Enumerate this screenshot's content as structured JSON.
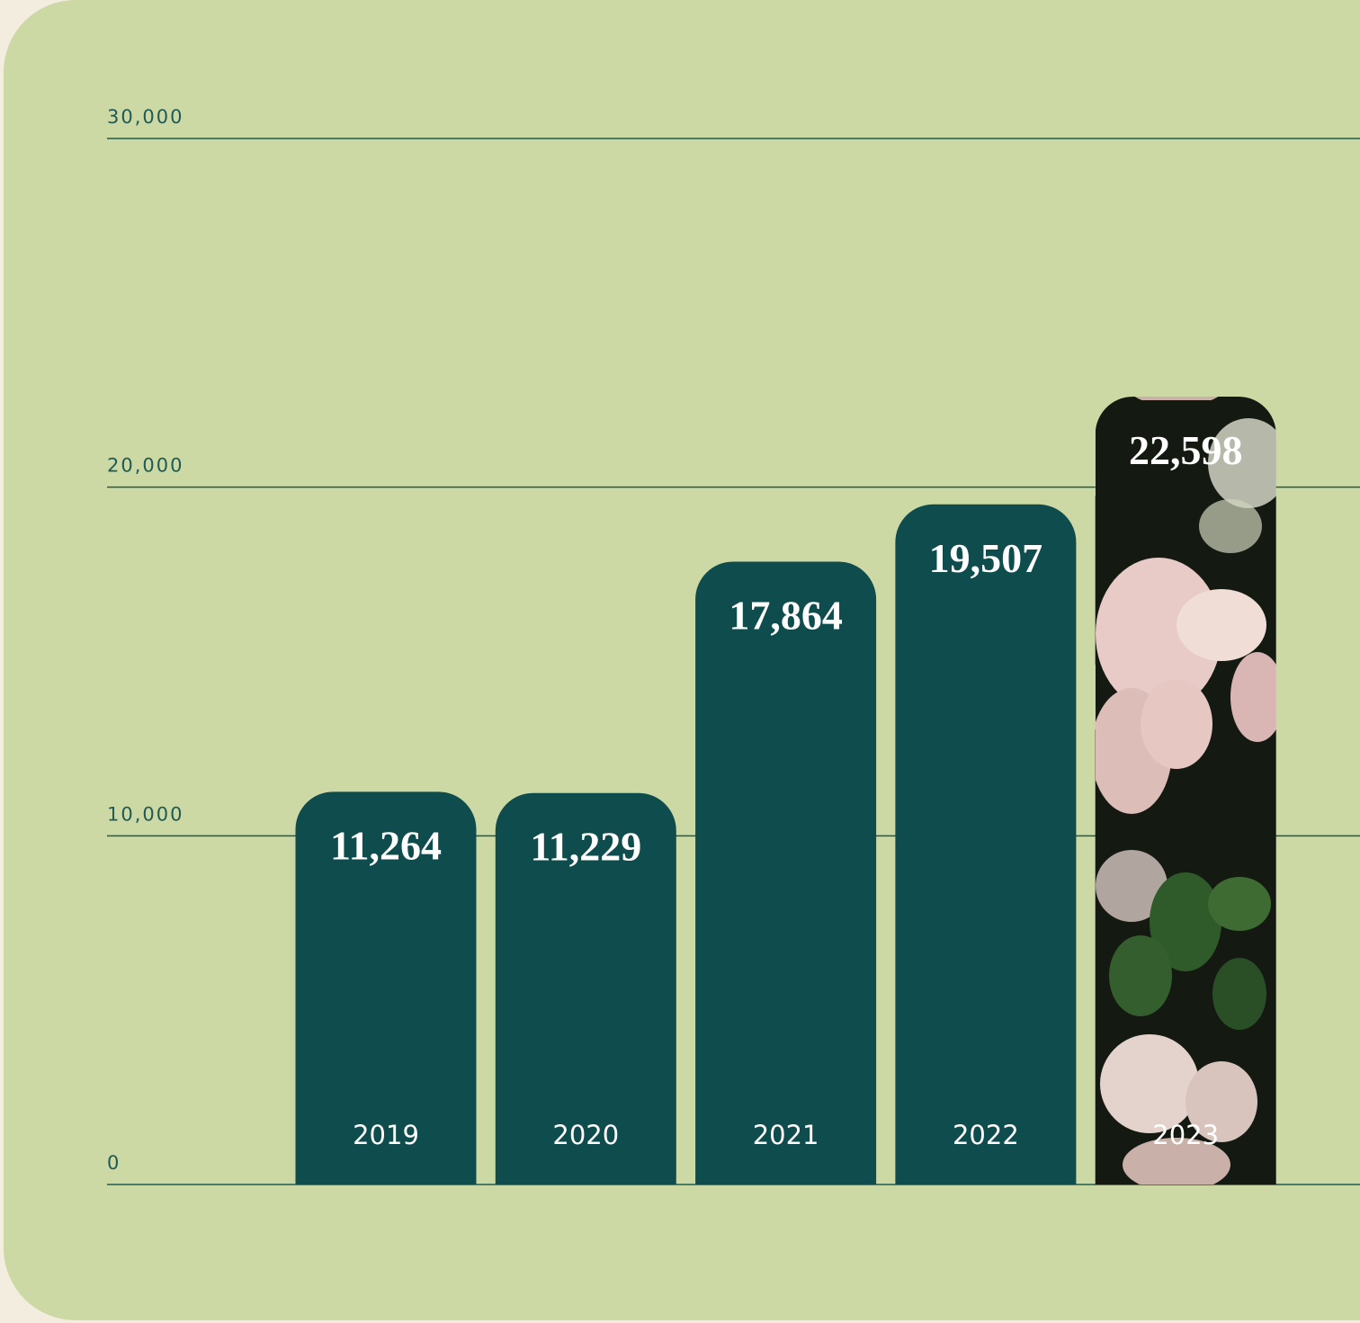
{
  "chart_data": {
    "type": "bar",
    "categories": [
      "2019",
      "2020",
      "2021",
      "2022",
      "2023"
    ],
    "values": [
      11264,
      11229,
      17864,
      19507,
      22598
    ],
    "value_labels": [
      "11,264",
      "11,229",
      "17,864",
      "19,507",
      "22,598"
    ],
    "color": "#0e4c4d",
    "ylim": [
      0,
      30000
    ],
    "yticks": [
      0,
      {
        "value": 10000,
        "label": "10,000"
      },
      {
        "value": 20000,
        "label": "20,000"
      },
      {
        "value": 30000,
        "label": "30,000"
      }
    ],
    "grid": true
  }
}
